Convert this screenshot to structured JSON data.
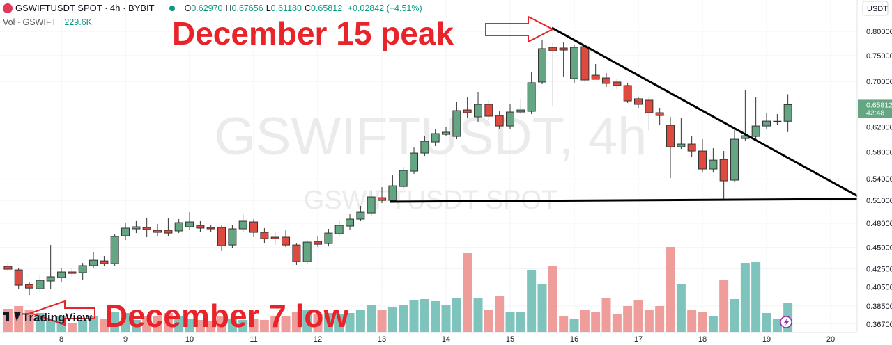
{
  "chart_data": {
    "type": "candlestick",
    "header": {
      "symbol": "GSWIFTUSDT SPOT · 4h · BYBIT",
      "ohlc": [
        {
          "key": "O",
          "value": "0.62970"
        },
        {
          "key": "H",
          "value": "0.67656"
        },
        {
          "key": "L",
          "value": "0.61180"
        },
        {
          "key": "C",
          "value": "0.65812"
        }
      ],
      "change": "+0.02842 (+4.51%)",
      "volume_name": "Vol · GSWIFT",
      "volume_label": "229.6K"
    },
    "watermark": {
      "main": "GSWIFTUSDT, 4h",
      "sub": "GSWIFTUSDT SPOT"
    },
    "annotations": [
      "December 15 peak",
      "December 7 low"
    ],
    "currency": "USDT",
    "last_price_label": "0.65812",
    "countdown": "42:48",
    "logo": "TradingView",
    "x": [
      7.167,
      7.333,
      7.5,
      7.667,
      7.833,
      8,
      8.167,
      8.333,
      8.5,
      8.667,
      8.833,
      9,
      9.167,
      9.333,
      9.5,
      9.667,
      9.833,
      10,
      10.167,
      10.333,
      10.5,
      10.667,
      10.833,
      11,
      11.167,
      11.333,
      11.5,
      11.667,
      11.833,
      12,
      12.167,
      12.333,
      12.5,
      12.667,
      12.833,
      13,
      13.167,
      13.333,
      13.5,
      13.667,
      13.833,
      14,
      14.167,
      14.333,
      14.5,
      14.667,
      14.833,
      15,
      15.167,
      15.333,
      15.5,
      15.667,
      15.833,
      16,
      16.167,
      16.333,
      16.5,
      16.667,
      16.833,
      17,
      17.167,
      17.333,
      17.5,
      17.667,
      17.833,
      18,
      18.167,
      18.333,
      18.5,
      18.667,
      18.833,
      19,
      19.167,
      19.333
    ],
    "open": [
      0.4278,
      0.4238,
      0.4076,
      0.4031,
      0.4115,
      0.4153,
      0.4215,
      0.4207,
      0.4286,
      0.4341,
      0.4309,
      0.4641,
      0.4728,
      0.4745,
      0.471,
      0.471,
      0.4702,
      0.4754,
      0.4772,
      0.4745,
      0.4745,
      0.453,
      0.4728,
      0.4816,
      0.4684,
      0.4624,
      0.4624,
      0.453,
      0.4333,
      0.4572,
      0.4547,
      0.4667,
      0.4763,
      0.4852,
      0.4933,
      0.5138,
      0.51,
      0.5292,
      0.5513,
      0.5785,
      0.5959,
      0.6081,
      0.6048,
      0.6489,
      0.637,
      0.6586,
      0.6393,
      0.6218,
      0.6453,
      0.6465,
      0.6989,
      0.7666,
      0.7652,
      0.7053,
      0.768,
      0.7118,
      0.7066,
      0.6989,
      0.6924,
      0.6685,
      0.666,
      0.6441,
      0.623,
      0.5882,
      0.5926,
      0.5817,
      0.5544,
      0.5688,
      0.5382,
      0.6014,
      0.6048,
      0.6218,
      0.6288,
      0.6297
    ],
    "high": [
      0.4317,
      0.4262,
      0.4107,
      0.4176,
      0.453,
      0.4262,
      0.4254,
      0.4317,
      0.4447,
      0.4398,
      0.4667,
      0.4799,
      0.4826,
      0.487,
      0.4789,
      0.4861,
      0.4852,
      0.4942,
      0.4825,
      0.478,
      0.478,
      0.478,
      0.4915,
      0.4852,
      0.4737,
      0.4684,
      0.4719,
      0.4547,
      0.4589,
      0.4633,
      0.4728,
      0.4825,
      0.4915,
      0.5026,
      0.5243,
      0.5283,
      0.5452,
      0.5574,
      0.5871,
      0.6059,
      0.6172,
      0.6206,
      0.6635,
      0.6709,
      0.6809,
      0.666,
      0.6465,
      0.6586,
      0.6673,
      0.7172,
      0.7824,
      0.7752,
      0.7781,
      0.7709,
      0.7709,
      0.7332,
      0.7158,
      0.7053,
      0.6963,
      0.6709,
      0.6709,
      0.6525,
      0.637,
      0.6346,
      0.6048,
      0.6003,
      0.586,
      0.5817,
      0.6184,
      0.6834,
      0.6709,
      0.6441,
      0.6417,
      0.67656
    ],
    "low": [
      0.4223,
      0.4031,
      0.3964,
      0.3994,
      0.4031,
      0.4107,
      0.4161,
      0.413,
      0.4254,
      0.4278,
      0.4286,
      0.4589,
      0.4675,
      0.4624,
      0.4633,
      0.4641,
      0.4675,
      0.4719,
      0.4693,
      0.4693,
      0.4456,
      0.4489,
      0.4684,
      0.4624,
      0.4555,
      0.453,
      0.4505,
      0.4294,
      0.4302,
      0.4505,
      0.4513,
      0.4633,
      0.4719,
      0.4825,
      0.4897,
      0.5063,
      0.5072,
      0.5253,
      0.5472,
      0.5742,
      0.5893,
      0.6048,
      0.6003,
      0.6346,
      0.6288,
      0.6311,
      0.6172,
      0.6172,
      0.6417,
      0.6417,
      0.695,
      0.6561,
      0.7092,
      0.6963,
      0.6989,
      0.704,
      0.6898,
      0.686,
      0.661,
      0.6525,
      0.6149,
      0.623,
      0.5412,
      0.5849,
      0.5731,
      0.5502,
      0.5492,
      0.5119,
      0.5352,
      0.5981,
      0.6003,
      0.6172,
      0.623,
      0.6118
    ],
    "close": [
      0.4246,
      0.4069,
      0.4038,
      0.4122,
      0.4161,
      0.4215,
      0.4199,
      0.4286,
      0.4349,
      0.4309,
      0.4633,
      0.4737,
      0.4754,
      0.4719,
      0.4684,
      0.4675,
      0.4807,
      0.4816,
      0.4737,
      0.4728,
      0.4521,
      0.4728,
      0.4825,
      0.4684,
      0.4606,
      0.4606,
      0.453,
      0.4333,
      0.4564,
      0.4538,
      0.4675,
      0.4772,
      0.4852,
      0.4942,
      0.5148,
      0.51,
      0.5302,
      0.5523,
      0.5785,
      0.597,
      0.6093,
      0.6116,
      0.6477,
      0.6441,
      0.6586,
      0.6382,
      0.6218,
      0.6453,
      0.6489,
      0.6976,
      0.7638,
      0.7595,
      0.7609,
      0.7666,
      0.7027,
      0.704,
      0.6963,
      0.6924,
      0.6647,
      0.6586,
      0.6441,
      0.6393,
      0.5882,
      0.5926,
      0.5817,
      0.5544,
      0.5678,
      0.5372,
      0.6003,
      0.6059,
      0.6218,
      0.6299,
      0.6297,
      0.65812
    ],
    "volume": [
      182750,
      204250,
      177375,
      150500,
      96750,
      123625,
      69875,
      96750,
      123625,
      107500,
      161250,
      150500,
      96750,
      123625,
      123625,
      150500,
      123625,
      107500,
      96750,
      86000,
      123625,
      107500,
      96750,
      107500,
      96750,
      123625,
      123625,
      161250,
      172000,
      139750,
      150500,
      139750,
      150500,
      177375,
      215000,
      177375,
      193500,
      215000,
      247250,
      258000,
      241875,
      215000,
      268750,
      612750,
      268750,
      177375,
      284875,
      161250,
      161250,
      483750,
      376250,
      516000,
      123625,
      107500,
      177375,
      161250,
      268750,
      139750,
      204250,
      247250,
      177375,
      204250,
      661125,
      376250,
      177375,
      161250,
      123625,
      403125,
      258000,
      537500,
      548250,
      150500,
      107500,
      229600
    ],
    "up_color": "#64a683",
    "down_color": "#de4a3f",
    "volume_up_color": "#7fc4bc",
    "volume_down_color": "#ef9d9b",
    "log_scale": true,
    "grid": true,
    "xlim": [
      7.043,
      20.413
    ],
    "xticks": [
      8,
      9,
      10,
      11,
      12,
      13,
      14,
      15,
      16,
      17,
      18,
      19,
      20
    ],
    "ylim": [
      0.3588,
      0.8695
    ],
    "yticks": [
      {
        "value": 0.8,
        "label": "0.80000"
      },
      {
        "value": 0.75,
        "label": "0.75000"
      },
      {
        "value": 0.7,
        "label": "0.70000"
      },
      {
        "value": 0.62,
        "label": "0.62000"
      },
      {
        "value": 0.58,
        "label": "0.58000"
      },
      {
        "value": 0.54,
        "label": "0.54000"
      },
      {
        "value": 0.51,
        "label": "0.51000"
      },
      {
        "value": 0.48,
        "label": "0.48000"
      },
      {
        "value": 0.45,
        "label": "0.45000"
      },
      {
        "value": 0.425,
        "label": "0.42500"
      },
      {
        "value": 0.405,
        "label": "0.40500"
      },
      {
        "value": 0.385,
        "label": "0.38500"
      },
      {
        "value": 0.367,
        "label": "0.36700"
      }
    ],
    "volume_lim": [
      0,
      860000
    ]
  }
}
